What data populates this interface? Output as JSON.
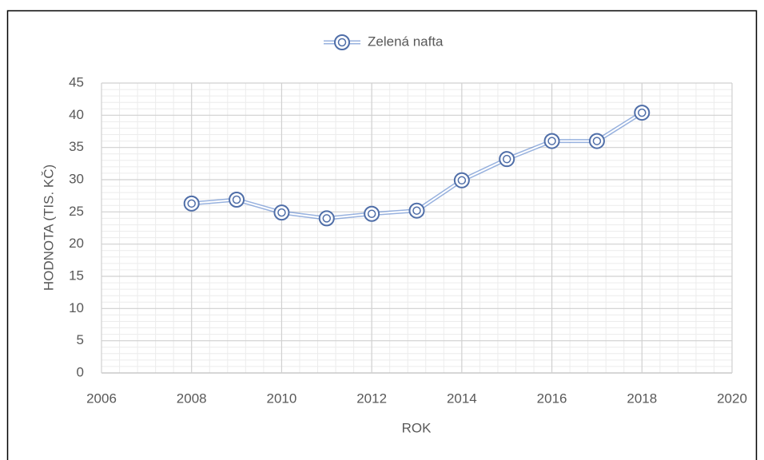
{
  "chart_data": {
    "type": "scatter-line",
    "y_label": "HODNOTA (TIS. KČ)",
    "x_label": "ROK",
    "x": [
      2008,
      2009,
      2010,
      2011,
      2012,
      2013,
      2014,
      2015,
      2016,
      2017,
      2018
    ],
    "series": [
      {
        "name": "Zelená nafta",
        "color": "#4472c4",
        "values": [
          26.3,
          26.9,
          24.9,
          24.0,
          24.7,
          25.2,
          29.9,
          33.2,
          36.0,
          36.0,
          40.4
        ]
      }
    ],
    "xlim": [
      2006,
      2020
    ],
    "xticks": [
      2006,
      2008,
      2010,
      2012,
      2014,
      2016,
      2018,
      2020
    ],
    "ylim": [
      0,
      45
    ],
    "yticks": [
      0,
      5,
      10,
      15,
      20,
      25,
      30,
      35,
      40,
      45
    ],
    "grid": true,
    "minor_grid": true,
    "legend": "top"
  }
}
